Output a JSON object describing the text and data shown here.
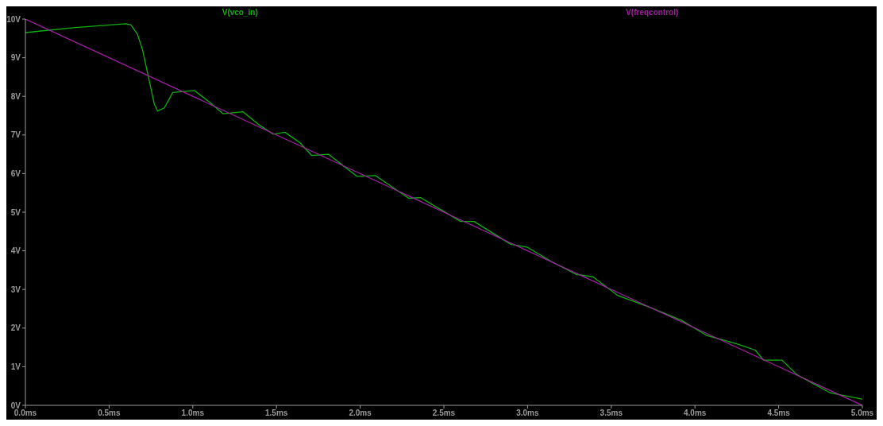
{
  "chart_data": {
    "type": "line",
    "legend": "top",
    "grid": false,
    "marker": "none",
    "line_style": "solid",
    "xlim": [
      0,
      5
    ],
    "ylim": [
      0,
      10
    ],
    "xticks": [
      {
        "value": 0,
        "label": "0.0ms"
      },
      {
        "value": 0.5,
        "label": "0.5ms"
      },
      {
        "value": 1,
        "label": "1.0ms"
      },
      {
        "value": 1.5,
        "label": "1.5ms"
      },
      {
        "value": 2,
        "label": "2.0ms"
      },
      {
        "value": 2.5,
        "label": "2.5ms"
      },
      {
        "value": 3,
        "label": "3.0ms"
      },
      {
        "value": 3.5,
        "label": "3.5ms"
      },
      {
        "value": 4,
        "label": "4.0ms"
      },
      {
        "value": 4.5,
        "label": "4.5ms"
      },
      {
        "value": 5,
        "label": "5.0ms"
      }
    ],
    "yticks": [
      {
        "value": 0,
        "label": "0V"
      },
      {
        "value": 1,
        "label": "1V"
      },
      {
        "value": 2,
        "label": "2V"
      },
      {
        "value": 3,
        "label": "3V"
      },
      {
        "value": 4,
        "label": "4V"
      },
      {
        "value": 5,
        "label": "5V"
      },
      {
        "value": 6,
        "label": "6V"
      },
      {
        "value": 7,
        "label": "7V"
      },
      {
        "value": 8,
        "label": "8V"
      },
      {
        "value": 9,
        "label": "9V"
      },
      {
        "value": 10,
        "label": "10V"
      }
    ],
    "series": [
      {
        "name": "V(vco_in)",
        "color": "#10b010",
        "x": [
          0,
          0.3,
          0.6,
          0.63,
          0.67,
          0.7,
          0.73,
          0.77,
          0.79,
          0.83,
          0.88,
          1.01,
          1.1,
          1.18,
          1.3,
          1.4,
          1.48,
          1.55,
          1.64,
          1.71,
          1.81,
          1.98,
          2.09,
          2.29,
          2.36,
          2.6,
          2.68,
          2.9,
          3.0,
          3.14,
          3.29,
          3.39,
          3.54,
          3.73,
          3.92,
          4.07,
          4.25,
          4.36,
          4.41,
          4.52,
          4.61,
          4.81,
          5.0
        ],
        "values": [
          9.65,
          9.78,
          9.88,
          9.85,
          9.6,
          9.2,
          8.6,
          7.8,
          7.62,
          7.7,
          8.1,
          8.15,
          7.85,
          7.55,
          7.6,
          7.25,
          7.02,
          7.07,
          6.8,
          6.47,
          6.5,
          5.93,
          5.95,
          5.36,
          5.38,
          4.76,
          4.76,
          4.17,
          4.09,
          3.73,
          3.39,
          3.33,
          2.84,
          2.54,
          2.2,
          1.81,
          1.59,
          1.43,
          1.17,
          1.17,
          0.79,
          0.32,
          0.16
        ]
      },
      {
        "name": "V(freqcontrol)",
        "color": "#a020a0",
        "x": [
          0,
          2.5,
          5
        ],
        "values": [
          10,
          5,
          0
        ]
      }
    ]
  }
}
